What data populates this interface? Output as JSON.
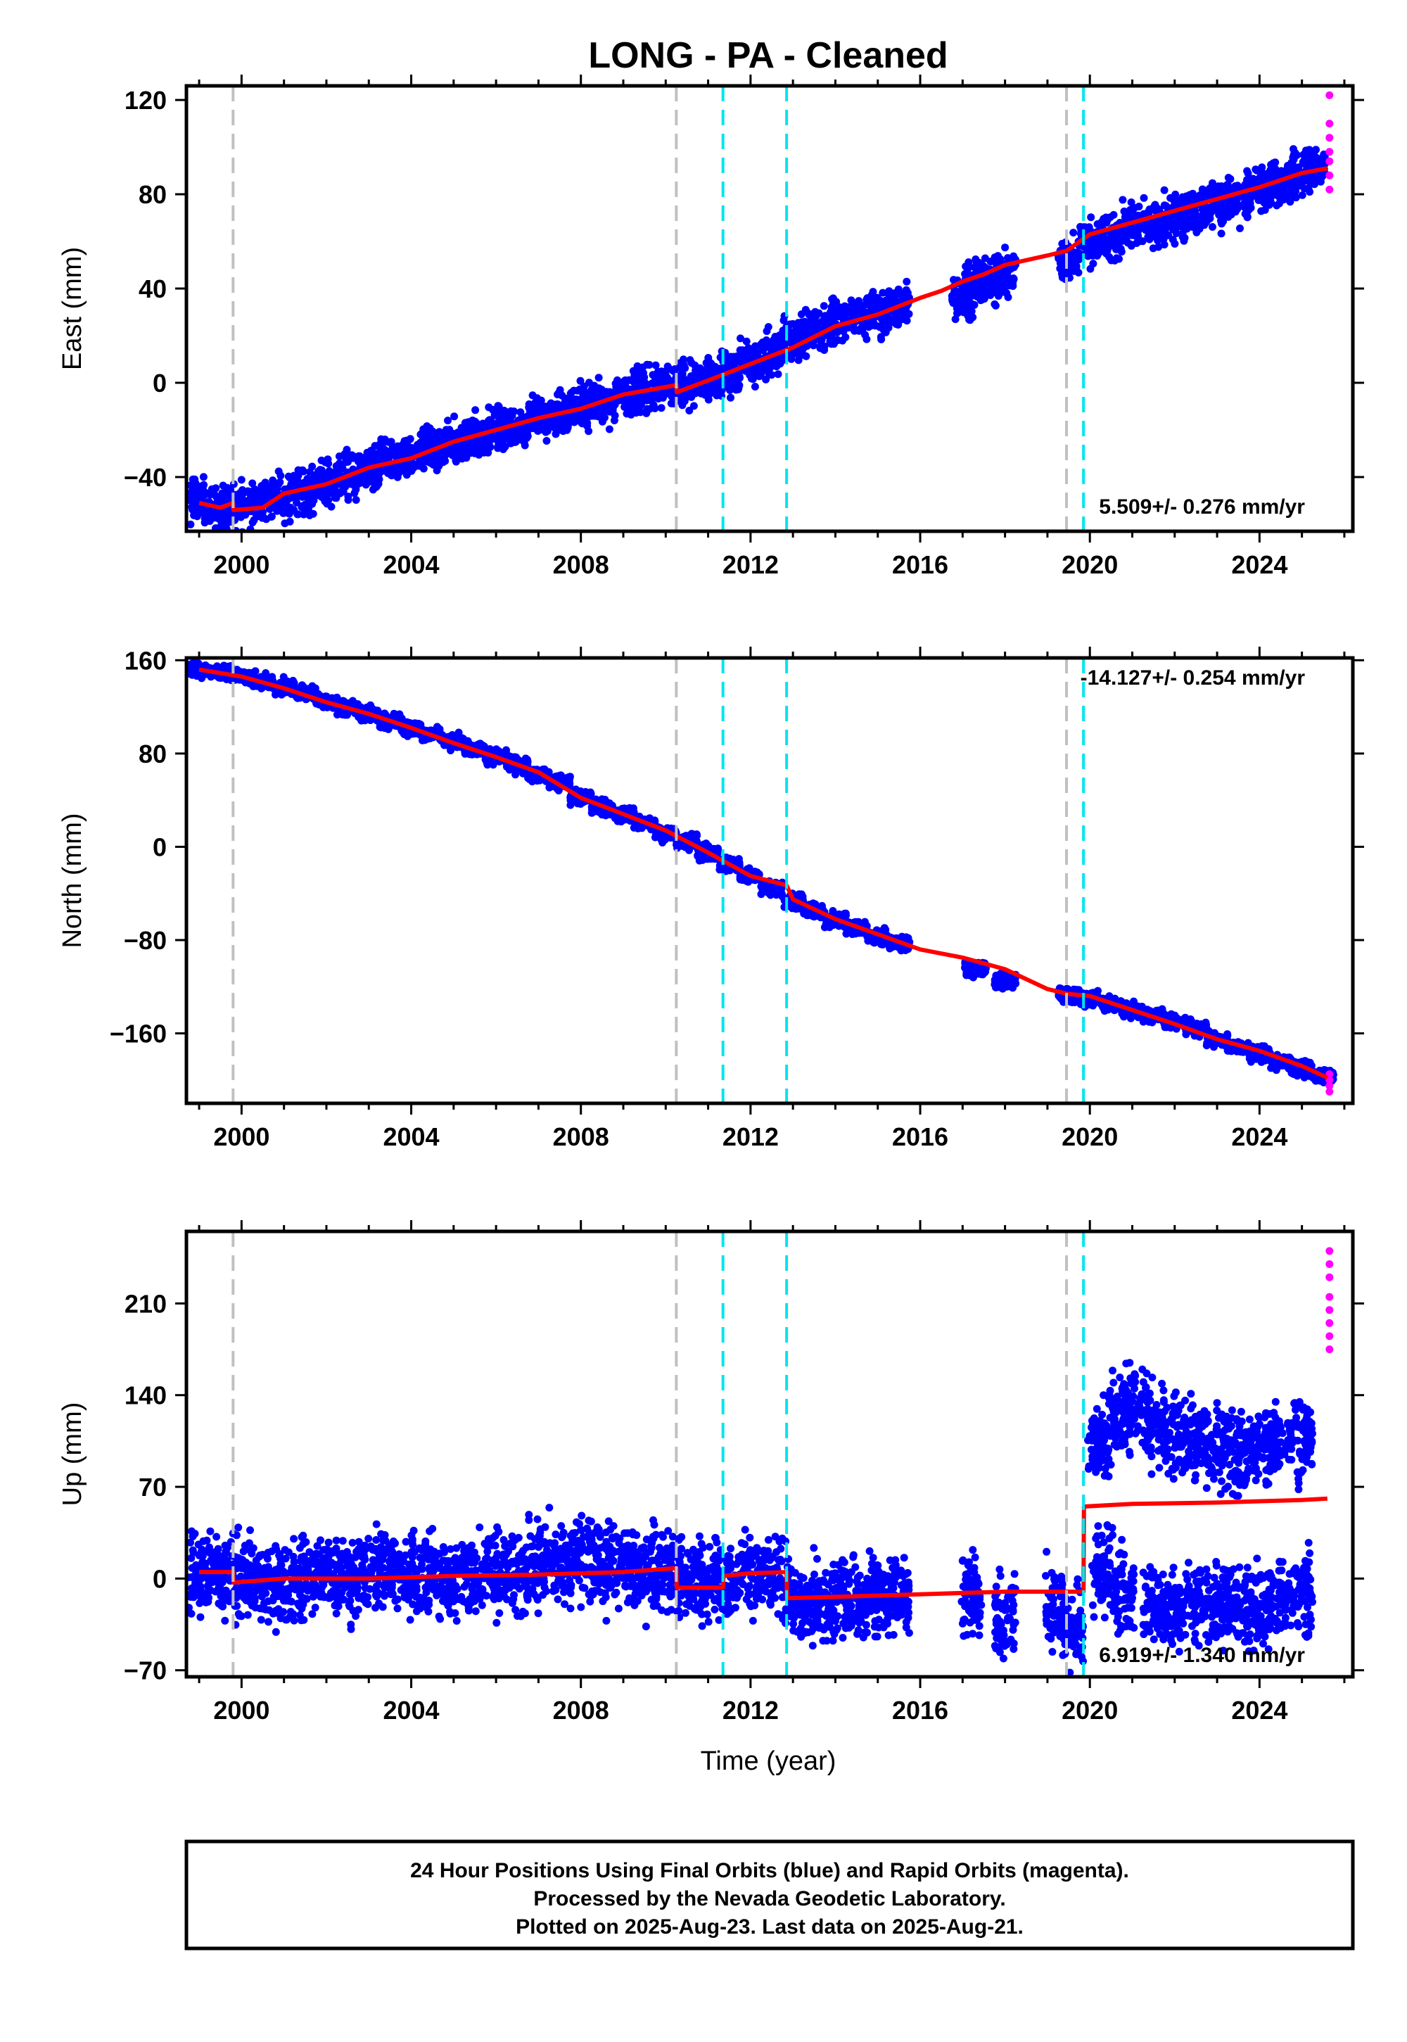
{
  "title": "LONG  - PA - Cleaned",
  "x_axis_label": "Time (year)",
  "footer": {
    "line1": "24 Hour Positions Using Final Orbits (blue) and Rapid Orbits (magenta).",
    "line2": "Processed by the Nevada Geodetic Laboratory.",
    "line3": "Plotted on 2025-Aug-23. Last data on 2025-Aug-21."
  },
  "colors": {
    "final": "#0000ff",
    "rapid": "#ff00ff",
    "model": "#ff0000",
    "equipment_change": "#c0c0c0",
    "earthquake": "#00e5ee"
  },
  "chart_data": [
    {
      "type": "scatter",
      "component": "East",
      "ylabel": "East (mm)",
      "rate_text": "5.509+/- 0.276 mm/yr",
      "xlim": [
        1998.7,
        2026.2
      ],
      "ylim": [
        -63,
        126
      ],
      "xticks": [
        2000,
        2004,
        2008,
        2012,
        2016,
        2020,
        2024
      ],
      "yticks": [
        -40,
        0,
        40,
        80,
        120
      ],
      "ytick_labels": [
        "−40",
        "0",
        "40",
        "80",
        "120"
      ],
      "equipment_changes": [
        1999.8,
        2010.25,
        2019.45
      ],
      "earthquakes": [
        2011.35,
        2012.85,
        2019.85
      ],
      "series": [
        {
          "style": "final",
          "x": [
            1999.0,
            1999.5,
            2000.0,
            2000.5,
            2001.0,
            2001.5,
            2002.0,
            2002.5,
            2003.0,
            2003.5,
            2004.0,
            2004.5,
            2005.0,
            2005.5,
            2006.0,
            2006.5,
            2007.0,
            2007.5,
            2008.0,
            2008.5,
            2009.0,
            2009.5,
            2010.0,
            2010.5,
            2011.0,
            2011.5,
            2012.0,
            2012.5,
            2013.0,
            2013.5,
            2014.0,
            2014.5,
            2015.0,
            2015.5,
            2017.0,
            2017.3,
            2017.6,
            2018.0,
            2019.5,
            2020.0,
            2020.5,
            2021.0,
            2021.5,
            2022.0,
            2022.5,
            2023.0,
            2023.5,
            2024.0,
            2024.5,
            2025.0,
            2025.3
          ],
          "y": [
            -50,
            -53,
            -52,
            -50,
            -48,
            -46,
            -43,
            -40,
            -37,
            -34,
            -31,
            -28,
            -26,
            -23,
            -20,
            -18,
            -15,
            -13,
            -10,
            -8,
            -6,
            -3,
            -1,
            0,
            2,
            4,
            8,
            12,
            18,
            22,
            26,
            28,
            30,
            32,
            35,
            44,
            42,
            46,
            52,
            60,
            62,
            66,
            68,
            70,
            72,
            76,
            78,
            82,
            84,
            88,
            92
          ],
          "spread": 9
        },
        {
          "style": "rapid",
          "x": [
            2025.65,
            2025.65,
            2025.65,
            2025.65,
            2025.65,
            2025.65,
            2025.65
          ],
          "y": [
            122,
            110,
            104,
            98,
            94,
            88,
            82
          ],
          "spread": 0
        }
      ],
      "model": {
        "x": [
          1999.0,
          1999.5,
          1999.8,
          1999.81,
          2000.5,
          2001.0,
          2002.0,
          2003.0,
          2004.0,
          2005.0,
          2006.0,
          2007.0,
          2008.0,
          2009.0,
          2010.25,
          2010.26,
          2011.0,
          2012.0,
          2013.0,
          2014.0,
          2015.0,
          2016.0,
          2016.5,
          2017.0,
          2017.5,
          2018.0,
          2019.0,
          2019.45,
          2020.0,
          2021.0,
          2022.0,
          2023.0,
          2024.0,
          2025.0,
          2025.6
        ],
        "y": [
          -51,
          -53,
          -51,
          -54,
          -53,
          -47,
          -43,
          -36,
          -32,
          -25,
          -20,
          -15,
          -11,
          -5,
          -1,
          -4,
          1,
          8,
          15,
          24,
          29,
          36,
          39,
          43,
          46,
          50,
          54,
          56,
          63,
          68,
          73,
          78,
          83,
          89,
          91
        ]
      }
    },
    {
      "type": "scatter",
      "component": "North",
      "ylabel": "North (mm)",
      "rate_text": "-14.127+/- 0.254 mm/yr",
      "xlim": [
        1998.7,
        2026.2
      ],
      "ylim": [
        -220,
        162
      ],
      "xticks": [
        2000,
        2004,
        2008,
        2012,
        2016,
        2020,
        2024
      ],
      "yticks": [
        -160,
        -80,
        0,
        80,
        160
      ],
      "ytick_labels": [
        "−160",
        "−80",
        "0",
        "80",
        "160"
      ],
      "equipment_changes": [
        1999.8,
        2010.25,
        2019.45
      ],
      "earthquakes": [
        2011.35,
        2012.85,
        2019.85
      ],
      "series": [
        {
          "style": "final",
          "x": [
            1999.0,
            1999.5,
            2000.0,
            2000.5,
            2001.0,
            2001.5,
            2002.0,
            2002.5,
            2003.0,
            2003.5,
            2004.0,
            2004.5,
            2005.0,
            2005.5,
            2006.0,
            2006.5,
            2007.0,
            2007.5,
            2008.0,
            2008.5,
            2009.0,
            2009.5,
            2010.0,
            2010.5,
            2011.0,
            2011.5,
            2012.0,
            2012.5,
            2013.0,
            2013.5,
            2014.0,
            2014.5,
            2015.0,
            2015.5,
            2017.3,
            2018.0,
            2019.5,
            2020.0,
            2020.5,
            2021.0,
            2021.5,
            2022.0,
            2022.5,
            2023.0,
            2023.5,
            2024.0,
            2024.5,
            2025.0,
            2025.5
          ],
          "y": [
            152,
            150,
            146,
            142,
            137,
            132,
            125,
            120,
            114,
            108,
            102,
            96,
            90,
            83,
            77,
            70,
            62,
            55,
            42,
            34,
            28,
            20,
            12,
            4,
            -5,
            -15,
            -25,
            -35,
            -46,
            -55,
            -63,
            -70,
            -77,
            -82,
            -105,
            -115,
            -127,
            -130,
            -135,
            -140,
            -145,
            -150,
            -155,
            -165,
            -172,
            -178,
            -185,
            -190,
            -196
          ],
          "spread": 6
        },
        {
          "style": "rapid",
          "x": [
            2025.65,
            2025.65,
            2025.65,
            2025.65
          ],
          "y": [
            -195,
            -200,
            -205,
            -210
          ],
          "spread": 0
        }
      ],
      "model": {
        "x": [
          1999.0,
          2000.0,
          2001.0,
          2002.0,
          2003.0,
          2004.0,
          2005.0,
          2006.0,
          2007.0,
          2008.0,
          2009.0,
          2010.0,
          2011.0,
          2012.0,
          2012.85,
          2013.0,
          2014.0,
          2015.0,
          2016.0,
          2017.0,
          2018.0,
          2019.0,
          2019.45,
          2020.0,
          2021.0,
          2022.0,
          2023.0,
          2024.0,
          2025.0,
          2025.6
        ],
        "y": [
          152,
          146,
          136,
          124,
          114,
          102,
          89,
          77,
          64,
          42,
          28,
          14,
          -5,
          -25,
          -33,
          -45,
          -62,
          -75,
          -88,
          -95,
          -105,
          -122,
          -126,
          -128,
          -140,
          -152,
          -165,
          -175,
          -188,
          -198
        ]
      }
    },
    {
      "type": "scatter",
      "component": "Up",
      "ylabel": "Up (mm)",
      "rate_text": "6.919+/- 1.340 mm/yr",
      "xlim": [
        1998.7,
        2026.2
      ],
      "ylim": [
        -75,
        265
      ],
      "xticks": [
        2000,
        2004,
        2008,
        2012,
        2016,
        2020,
        2024
      ],
      "yticks": [
        -70,
        0,
        70,
        140,
        210
      ],
      "ytick_labels": [
        "−70",
        "0",
        "70",
        "140",
        "210"
      ],
      "equipment_changes": [
        1999.8,
        2010.25,
        2019.45
      ],
      "earthquakes": [
        2011.35,
        2012.85,
        2019.85
      ],
      "series": [
        {
          "style": "final",
          "x": [
            1999.0,
            1999.5,
            2000.0,
            2000.5,
            2001.0,
            2001.5,
            2002.0,
            2002.5,
            2003.0,
            2003.5,
            2004.0,
            2004.5,
            2005.0,
            2005.5,
            2006.0,
            2006.5,
            2007.0,
            2007.5,
            2008.0,
            2008.5,
            2009.0,
            2009.5,
            2010.0,
            2010.5,
            2011.0,
            2011.5,
            2012.0,
            2012.5,
            2013.0,
            2013.5,
            2014.0,
            2014.5,
            2015.0,
            2015.5,
            2017.2,
            2018.0,
            2019.2,
            2019.6,
            2020.2,
            2020.7,
            2021.0,
            2021.5,
            2022.0,
            2022.5,
            2023.0,
            2023.5,
            2024.0,
            2024.5,
            2025.0,
            2020.3,
            2020.8,
            2021.5,
            2022.0,
            2022.5,
            2023.0,
            2023.5,
            2024.0,
            2024.5,
            2025.0
          ],
          "y": [
            5,
            0,
            0,
            -5,
            -5,
            0,
            5,
            0,
            5,
            5,
            5,
            0,
            0,
            0,
            5,
            5,
            10,
            15,
            15,
            10,
            10,
            5,
            5,
            0,
            -5,
            0,
            5,
            5,
            -15,
            -20,
            -15,
            -15,
            -10,
            -10,
            -15,
            -25,
            -20,
            -35,
            100,
            120,
            130,
            120,
            110,
            105,
            100,
            95,
            100,
            105,
            110,
            5,
            -10,
            -20,
            -25,
            -15,
            -20,
            -20,
            -25,
            -15,
            -10
          ],
          "spread": 30
        },
        {
          "style": "rapid",
          "x": [
            2025.65,
            2025.65,
            2025.65,
            2025.65,
            2025.65,
            2025.65,
            2025.65,
            2025.65
          ],
          "y": [
            250,
            240,
            230,
            215,
            205,
            195,
            185,
            175
          ],
          "spread": 0
        }
      ],
      "model": {
        "x": [
          1999.0,
          1999.8,
          1999.81,
          2001.0,
          2003.0,
          2005.0,
          2007.0,
          2009.0,
          2010.25,
          2010.26,
          2011.35,
          2011.36,
          2012.0,
          2012.85,
          2012.86,
          2014.0,
          2016.0,
          2018.0,
          2019.85,
          2019.86,
          2021.0,
          2023.0,
          2025.0,
          2025.6
        ],
        "y": [
          5,
          5,
          -3,
          0,
          0,
          2,
          3,
          5,
          8,
          -7,
          -7,
          2,
          4,
          5,
          -15,
          -14,
          -12,
          -10,
          -10,
          55,
          57,
          58,
          60,
          61
        ]
      }
    }
  ]
}
